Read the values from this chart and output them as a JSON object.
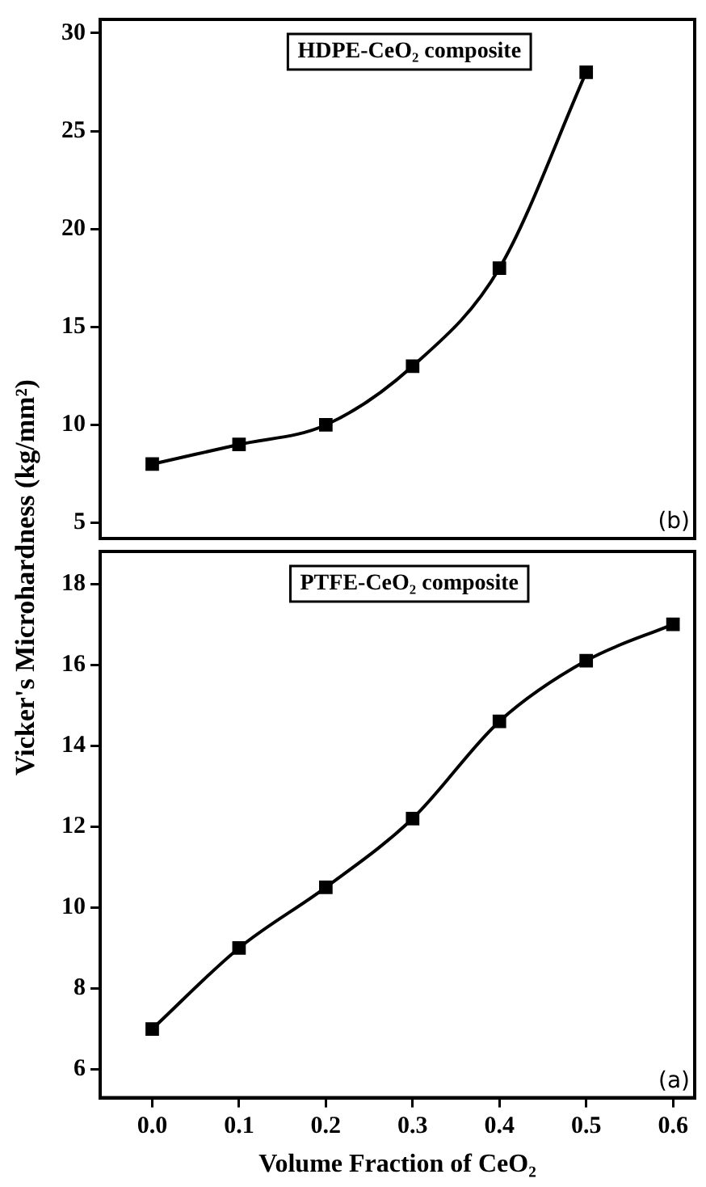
{
  "chart_data": [
    {
      "type": "line",
      "ylabel": "Vicker's Microhardness (kg/mm²)",
      "annotations": [
        "HDPE-CeO₂ composite",
        "(b)"
      ],
      "x": [
        0,
        0.1,
        0.2,
        0.3,
        0.4,
        0.5
      ],
      "series": [
        {
          "color": "#000000",
          "values": [
            8,
            9,
            10,
            13,
            18,
            28
          ]
        }
      ],
      "xlim": [
        -0.06,
        0.625
      ],
      "xticks": [
        {
          "value": 0,
          "label": null
        },
        {
          "value": 0.1,
          "label": null
        },
        {
          "value": 0.2,
          "label": null
        },
        {
          "value": 0.3,
          "label": null
        },
        {
          "value": 0.4,
          "label": null
        },
        {
          "value": 0.5,
          "label": null
        },
        {
          "value": 0.6,
          "label": null
        }
      ],
      "ylim": [
        4.2,
        30.7
      ],
      "yticks": [
        5,
        10,
        15,
        20,
        25,
        30
      ],
      "tick_labels": "y",
      "marker": "square",
      "line_style": "solid",
      "grid": false,
      "legend": false
    },
    {
      "type": "line",
      "xlabel": "Volume Fraction of CeO₂",
      "annotations": [
        "PTFE-CeO₂ composite",
        "(a)"
      ],
      "x": [
        0,
        0.1,
        0.2,
        0.3,
        0.4,
        0.5,
        0.6
      ],
      "series": [
        {
          "color": "#000000",
          "values": [
            7,
            9,
            10.5,
            12.2,
            14.6,
            16.1,
            17
          ]
        }
      ],
      "xlim": [
        -0.06,
        0.625
      ],
      "xticks": [
        {
          "value": 0,
          "label": "0.0"
        },
        {
          "value": 0.1,
          "label": "0.1"
        },
        {
          "value": 0.2,
          "label": "0.2"
        },
        {
          "value": 0.3,
          "label": "0.3"
        },
        {
          "value": 0.4,
          "label": "0.4"
        },
        {
          "value": 0.5,
          "label": "0.5"
        },
        {
          "value": 0.6,
          "label": "0.6"
        }
      ],
      "ylim": [
        5.3,
        18.8
      ],
      "yticks": [
        6,
        8,
        10,
        12,
        14,
        16,
        18
      ],
      "marker": "square",
      "line_style": "solid",
      "grid": false,
      "legend": false
    }
  ]
}
